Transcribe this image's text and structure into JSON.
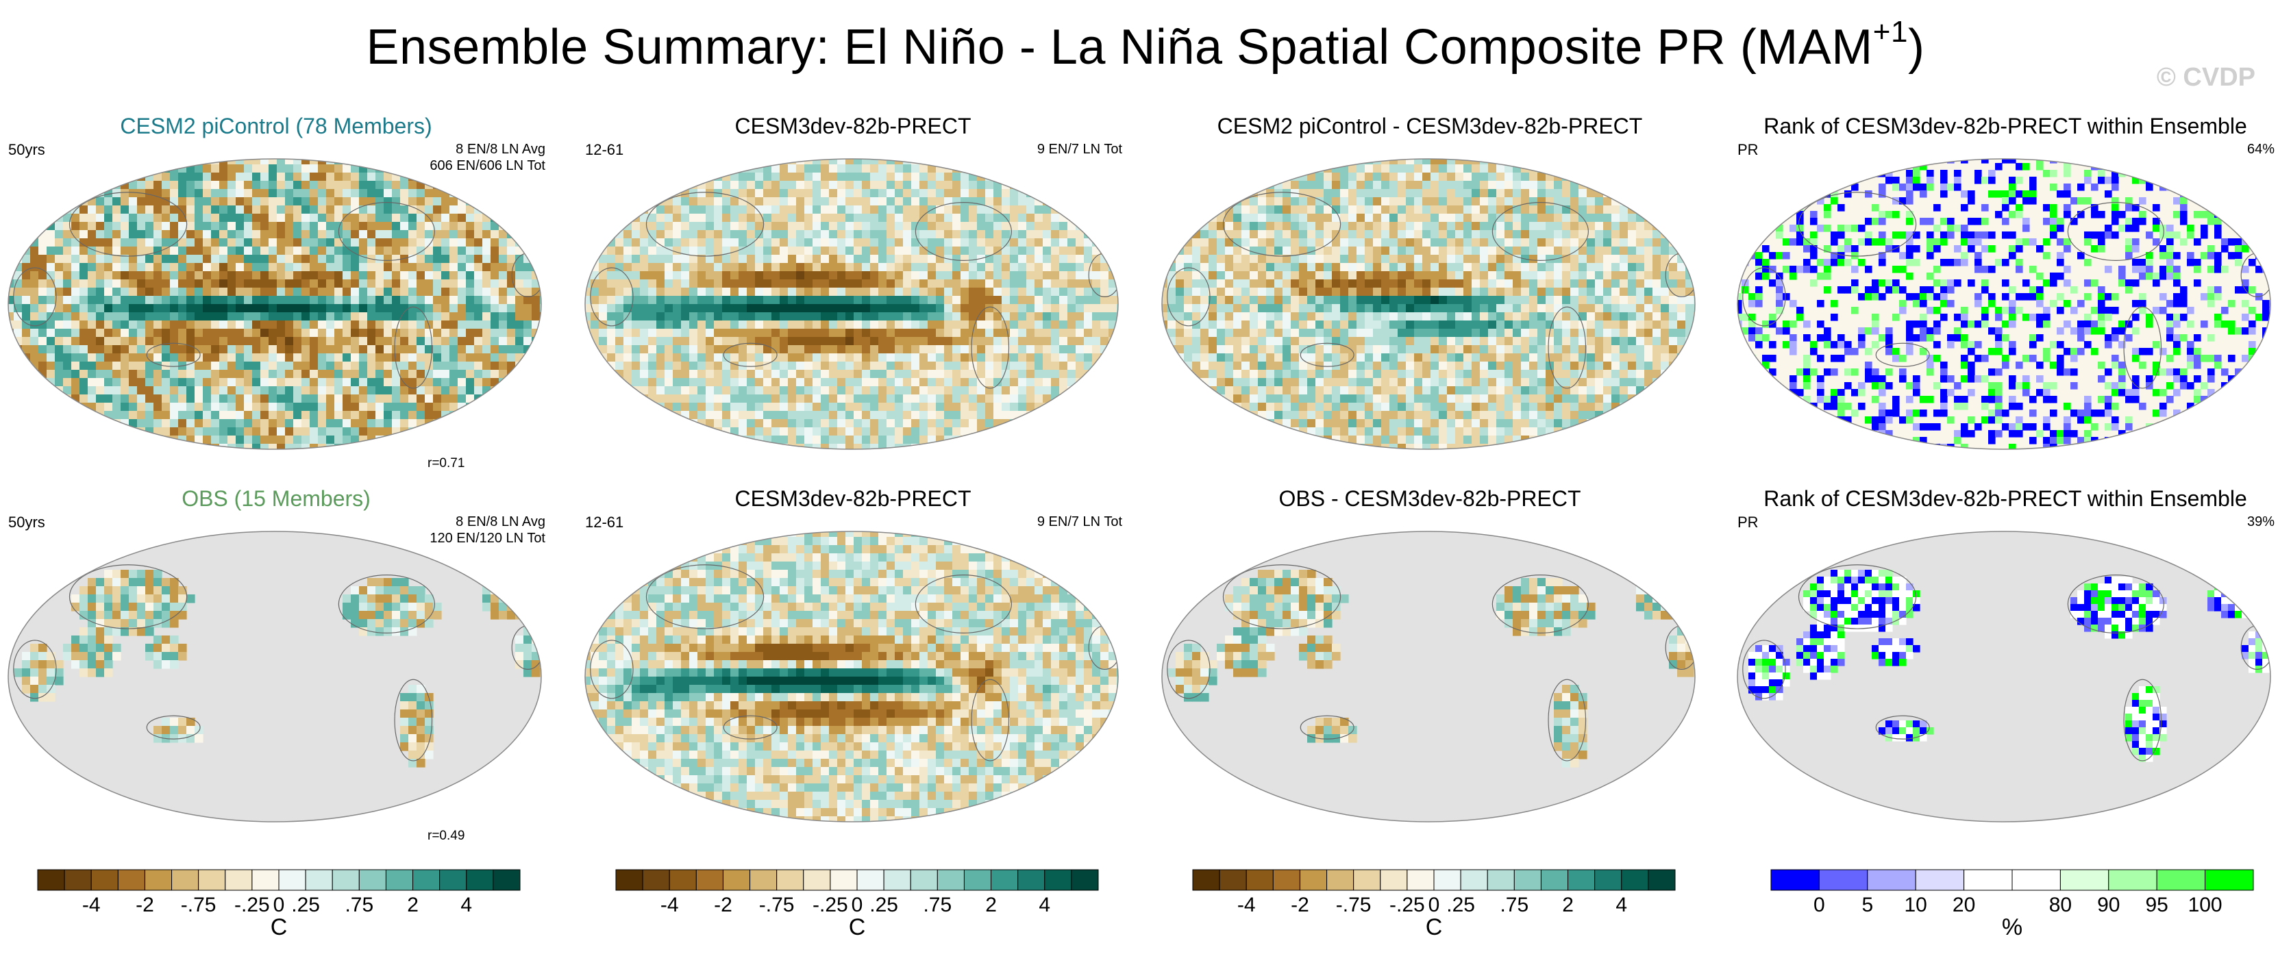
{
  "title": {
    "main": "Ensemble Summary: El Niño - La Niña Spatial Composite PR (MAM",
    "sup": "+1",
    "close": ")"
  },
  "watermark": "© CVDP",
  "rows": [
    {
      "panels": [
        {
          "title": "CESM2 piControl (78 Members)",
          "title_color": "#1a7a8a",
          "left": "50yrs",
          "right_lines": [
            "8 EN/8 LN Avg",
            "606 EN/606 LN Tot"
          ],
          "corr": "r=0.71"
        },
        {
          "title": "CESM3dev-82b-PRECT",
          "title_color": "#000000",
          "left": "12-61",
          "right_lines": [
            "9 EN/7 LN Tot"
          ],
          "corr": ""
        },
        {
          "title": "CESM2 piControl - CESM3dev-82b-PRECT",
          "title_color": "#000000",
          "left": "",
          "right_lines": [],
          "corr": ""
        },
        {
          "title": "Rank of CESM3dev-82b-PRECT within Ensemble",
          "title_color": "#000000",
          "left": "PR",
          "right_lines": [
            "64%"
          ],
          "corr": ""
        }
      ]
    },
    {
      "panels": [
        {
          "title": "OBS (15 Members)",
          "title_color": "#5a9a5a",
          "left": "50yrs",
          "right_lines": [
            "8 EN/8 LN Avg",
            "120 EN/120 LN Tot"
          ],
          "corr": "r=0.49"
        },
        {
          "title": "CESM3dev-82b-PRECT",
          "title_color": "#000000",
          "left": "12-61",
          "right_lines": [
            "9 EN/7 LN Tot"
          ],
          "corr": ""
        },
        {
          "title": "OBS - CESM3dev-82b-PRECT",
          "title_color": "#000000",
          "left": "",
          "right_lines": [],
          "corr": ""
        },
        {
          "title": "Rank of CESM3dev-82b-PRECT within Ensemble",
          "title_color": "#000000",
          "left": "PR",
          "right_lines": [
            "39%"
          ],
          "corr": ""
        }
      ]
    }
  ],
  "colorbars": [
    {
      "labels": [
        "-4",
        "-2",
        "-.75",
        "-.25",
        "0",
        ".25",
        ".75",
        "2",
        "4"
      ],
      "unit": "C",
      "colors": [
        "#543005",
        "#6e4410",
        "#8c5a18",
        "#a8712a",
        "#c49a4a",
        "#d8b878",
        "#e8d4a4",
        "#f4e8cc",
        "#fbf6ea",
        "#eef7f5",
        "#d4ece8",
        "#b4ded6",
        "#8ccbc0",
        "#5eb3a6",
        "#36988a",
        "#1a7b6e",
        "#075f52",
        "#00443a"
      ]
    },
    {
      "labels": [
        "-4",
        "-2",
        "-.75",
        "-.25",
        "0",
        ".25",
        ".75",
        "2",
        "4"
      ],
      "unit": "C",
      "colors": [
        "#543005",
        "#6e4410",
        "#8c5a18",
        "#a8712a",
        "#c49a4a",
        "#d8b878",
        "#e8d4a4",
        "#f4e8cc",
        "#fbf6ea",
        "#eef7f5",
        "#d4ece8",
        "#b4ded6",
        "#8ccbc0",
        "#5eb3a6",
        "#36988a",
        "#1a7b6e",
        "#075f52",
        "#00443a"
      ]
    },
    {
      "labels": [
        "-4",
        "-2",
        "-.75",
        "-.25",
        "0",
        ".25",
        ".75",
        "2",
        "4"
      ],
      "unit": "C",
      "colors": [
        "#543005",
        "#6e4410",
        "#8c5a18",
        "#a8712a",
        "#c49a4a",
        "#d8b878",
        "#e8d4a4",
        "#f4e8cc",
        "#fbf6ea",
        "#eef7f5",
        "#d4ece8",
        "#b4ded6",
        "#8ccbc0",
        "#5eb3a6",
        "#36988a",
        "#1a7b6e",
        "#075f52",
        "#00443a"
      ]
    },
    {
      "labels": [
        "0",
        "5",
        "10",
        "20",
        "80",
        "90",
        "95",
        "100"
      ],
      "unit": "%",
      "colors": [
        "#0000ff",
        "#6666ff",
        "#aaaaff",
        "#dcdcff",
        "#ffffff",
        "#ffffff",
        "#dcffdc",
        "#aaffaa",
        "#66ff66",
        "#00ff00"
      ]
    }
  ],
  "chart_data": {
    "type": "heatmap",
    "description_units": {
      "diverging": "C",
      "rank": "%"
    },
    "diverging_levels": [
      -4,
      -2,
      -0.75,
      -0.25,
      0,
      0.25,
      0.75,
      2,
      4
    ],
    "rank_levels": [
      0,
      5,
      10,
      20,
      80,
      90,
      95,
      100
    ],
    "rank_values": {
      "row1": 64,
      "row2": 39
    },
    "correlations": {
      "CESM2 piControl": 0.71,
      "OBS": 0.49
    },
    "colors": {
      "brown": "#8c5a18",
      "teal": "#075f52",
      "blue": "#0000ff",
      "green": "#00ff00",
      "land_mask": "#e2e2e2"
    }
  }
}
